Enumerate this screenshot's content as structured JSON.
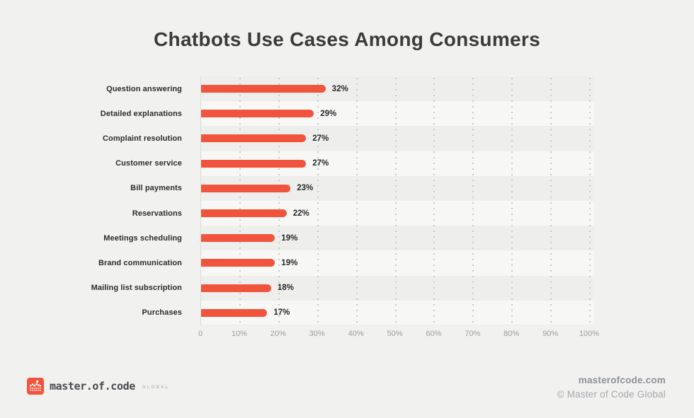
{
  "title": "Chatbots Use Cases Among Consumers",
  "chart_data": {
    "type": "bar",
    "orientation": "horizontal",
    "title": "Chatbots Use Cases Among Consumers",
    "categories": [
      "Question answering",
      "Detailed explanations",
      "Complaint resolution",
      "Customer service",
      "Bill payments",
      "Reservations",
      "Meetings scheduling",
      "Brand communication",
      "Mailing list subscription",
      "Purchases"
    ],
    "values": [
      32,
      29,
      27,
      27,
      23,
      22,
      19,
      19,
      18,
      17
    ],
    "value_labels": [
      "32%",
      "29%",
      "27%",
      "27%",
      "23%",
      "22%",
      "19%",
      "19%",
      "18%",
      "17%"
    ],
    "x_ticks": [
      "0",
      "10%",
      "20%",
      "30%",
      "40%",
      "50%",
      "60%",
      "70%",
      "80%",
      "90%",
      "100%"
    ],
    "xlim": [
      0,
      100
    ],
    "xlabel": "",
    "ylabel": "",
    "grid": "vertical-dotted",
    "legend": "none",
    "bar_color": "#F1543C"
  },
  "footer": {
    "logo": {
      "icon": "pixel-crown-icon",
      "text": "master.of.code",
      "suffix": "GLOBAL"
    },
    "website": "masterofcode.com",
    "copyright": "© Master of Code Global"
  },
  "colors": {
    "background": "#F1F1EF",
    "bar": "#F1543C",
    "title_text": "#3B3B3B",
    "category_text": "#2C2C2C",
    "value_text": "#27292B",
    "tick_text": "#9C9C9A",
    "axis_line": "#DBDBD9",
    "grid_dot": "#C9C9C7",
    "footer_site_text": "#8D9198",
    "footer_copyright_text": "#A4A8AE"
  }
}
